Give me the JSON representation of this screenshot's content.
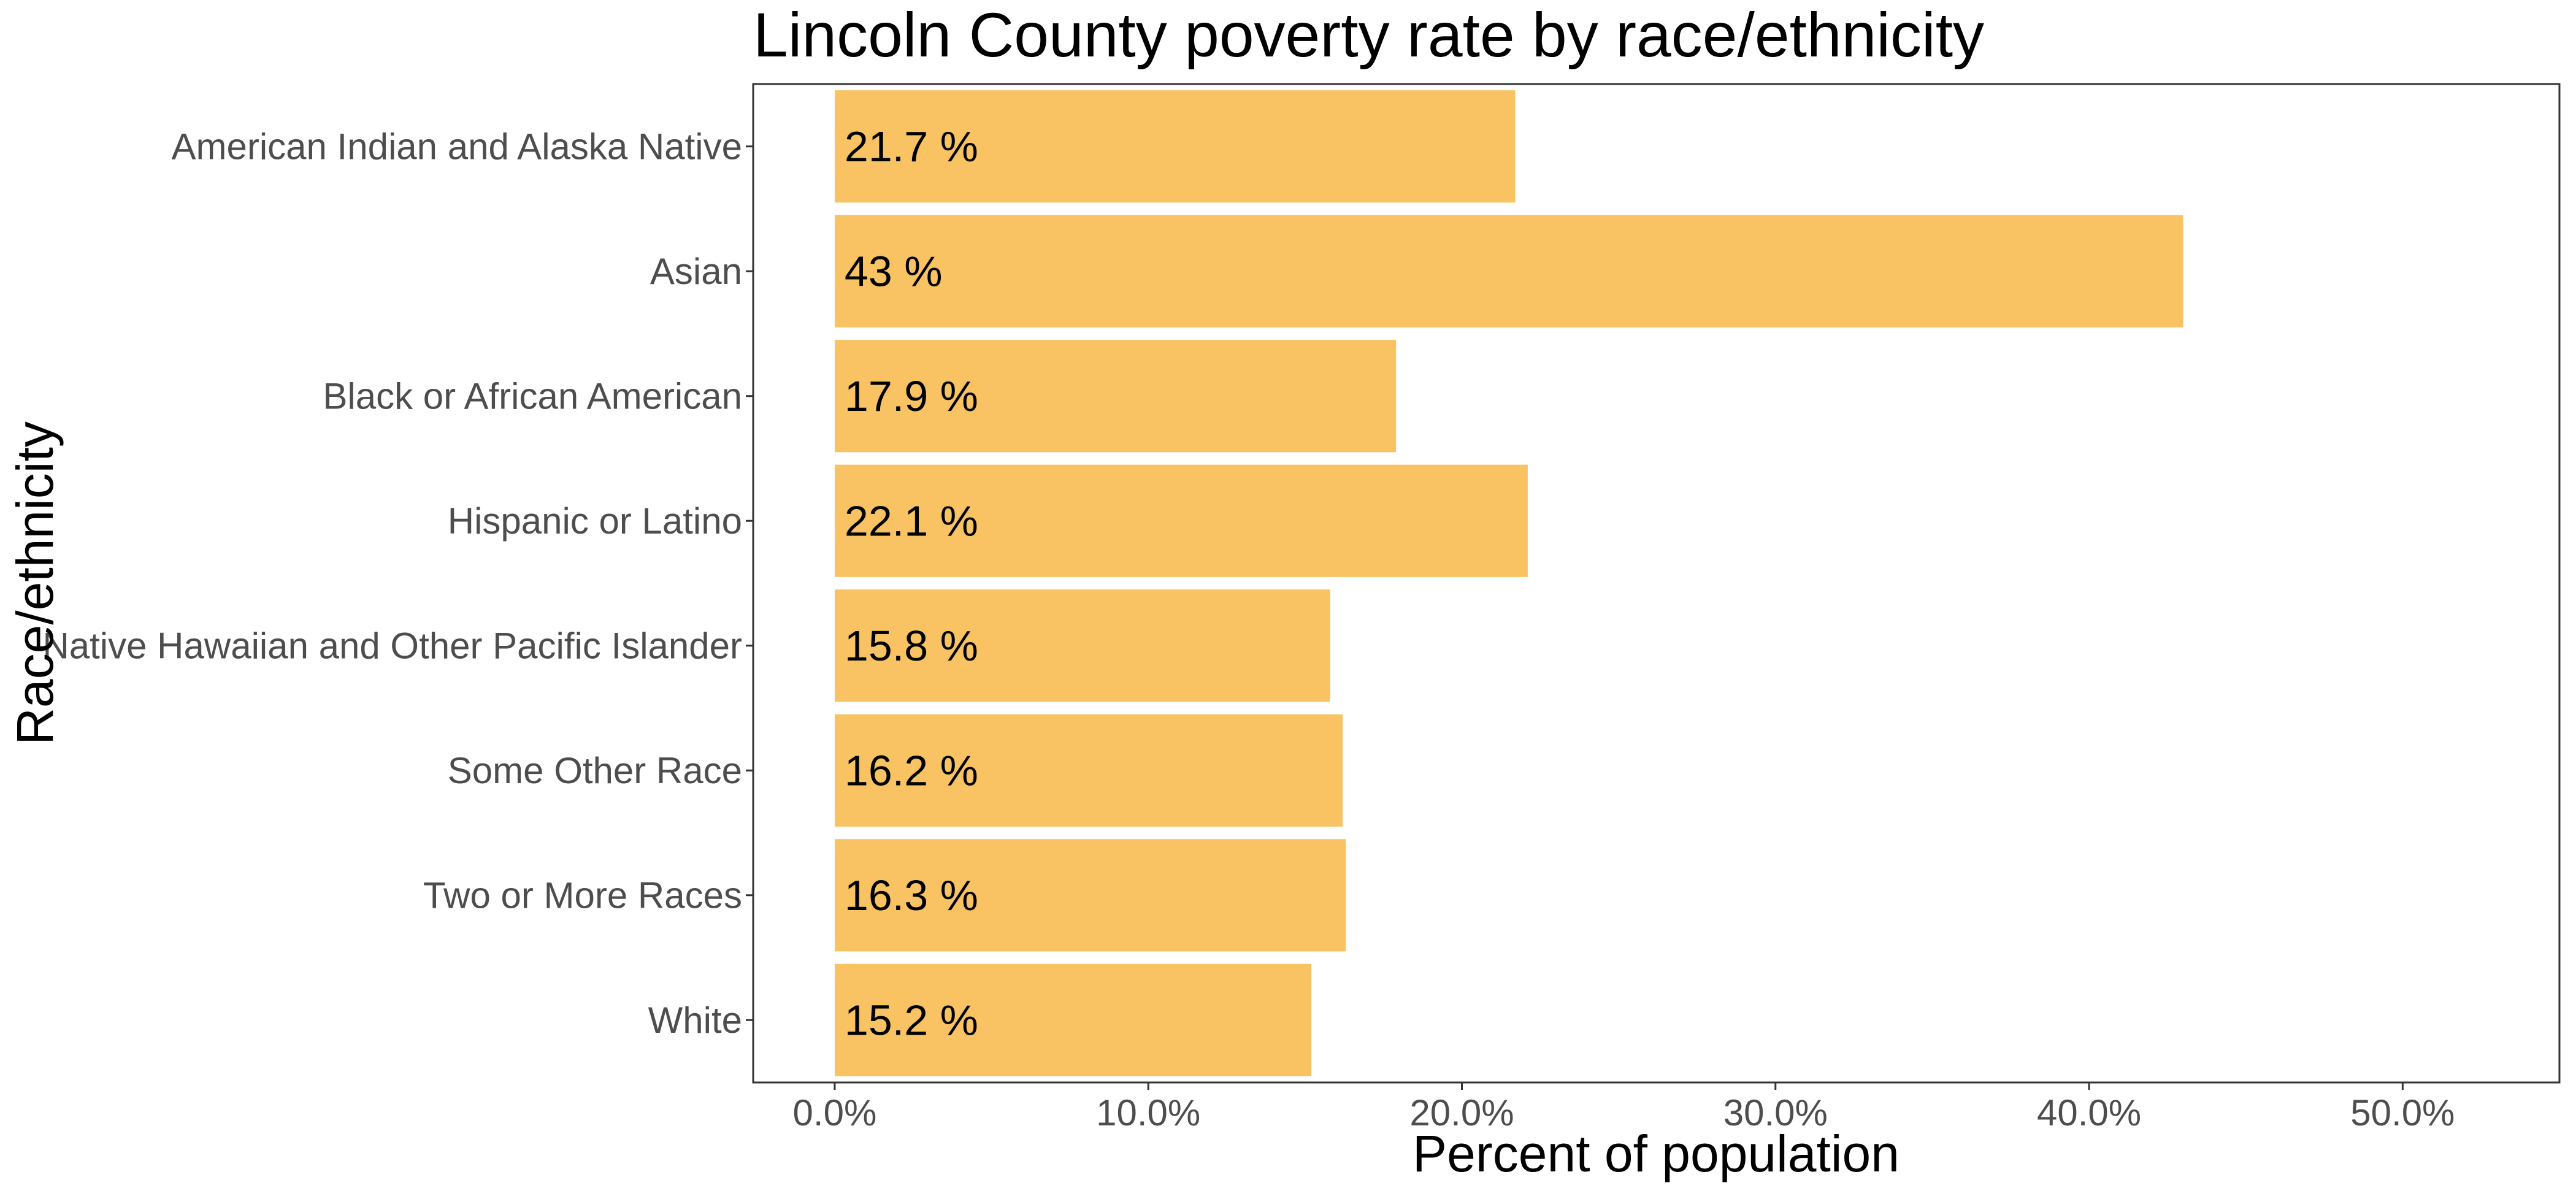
{
  "chart_data": {
    "type": "bar",
    "orientation": "horizontal",
    "title": "Lincoln County poverty rate by race/ethnicity",
    "xlabel": "Percent of population",
    "ylabel": "Race/ethnicity",
    "categories": [
      "American Indian and Alaska Native",
      "Asian",
      "Black or African American",
      "Hispanic or Latino",
      "Native Hawaiian and Other Pacific Islander",
      "Some Other Race",
      "Two or More Races",
      "White"
    ],
    "values": [
      21.7,
      43,
      17.9,
      22.1,
      15.8,
      16.2,
      16.3,
      15.2
    ],
    "data_labels": [
      "21.7 %",
      "43 %",
      "17.9 %",
      "22.1 %",
      "15.8 %",
      "16.2 %",
      "16.3 %",
      "15.2 %"
    ],
    "xticks": [
      0,
      10,
      20,
      30,
      40,
      50
    ],
    "xtick_labels": [
      "0.0%",
      "10.0%",
      "20.0%",
      "30.0%",
      "40.0%",
      "50.0%"
    ],
    "xlim": [
      -2.6,
      55
    ],
    "bar_color": "#F9C364",
    "grid": false,
    "legend": "none"
  }
}
